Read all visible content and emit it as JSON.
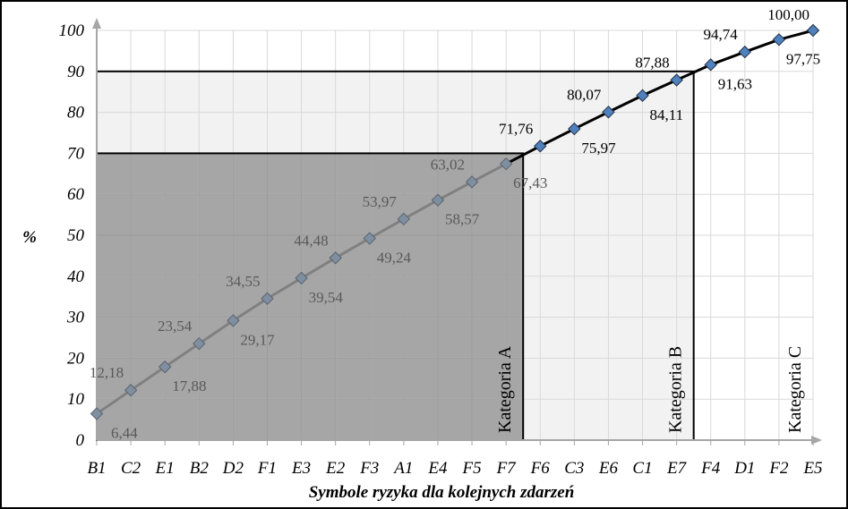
{
  "chart_data": {
    "type": "line",
    "xlabel": "Symbole ryzyka dla kolejnych zdarzeń",
    "ylabel": "%",
    "ylim": [
      0,
      100
    ],
    "yticks": [
      0,
      10,
      20,
      30,
      40,
      50,
      60,
      70,
      80,
      90,
      100
    ],
    "categories": [
      "B1",
      "C2",
      "E1",
      "B2",
      "D2",
      "F1",
      "E3",
      "E2",
      "F3",
      "A1",
      "E4",
      "F5",
      "F7",
      "F6",
      "C3",
      "E6",
      "C1",
      "E7",
      "F4",
      "D1",
      "F2",
      "E5"
    ],
    "values": [
      6.44,
      12.18,
      17.88,
      23.54,
      29.17,
      34.55,
      39.54,
      44.48,
      49.24,
      53.97,
      58.57,
      63.02,
      67.43,
      71.76,
      75.97,
      80.07,
      84.11,
      87.88,
      91.63,
      94.74,
      97.75,
      100.0
    ],
    "value_labels": [
      "6,44",
      "12,18",
      "17,88",
      "23,54",
      "29,17",
      "34,55",
      "39,54",
      "44,48",
      "49,24",
      "53,97",
      "58,57",
      "63,02",
      "67,43",
      "71,76",
      "75,97",
      "80,07",
      "84,11",
      "87,88",
      "91,63",
      "94,74",
      "97,75",
      "100,00"
    ],
    "label_positions": [
      "below",
      "above",
      "below",
      "above",
      "below",
      "above",
      "below",
      "above",
      "below",
      "above",
      "below",
      "above",
      "below",
      "above",
      "below",
      "above",
      "below",
      "above",
      "below",
      "above",
      "below",
      "above"
    ],
    "regions": [
      {
        "label": "Kategoria A",
        "y_max": 70,
        "x_end": 12.5,
        "fill": "#a6a6a6"
      },
      {
        "label": "Kategoria B",
        "y_max": 90,
        "x_end": 17.5,
        "fill": "#f2f2f2"
      },
      {
        "label": "Kategoria C",
        "y_max": 100,
        "x_end": 21,
        "fill": "#ffffff"
      }
    ],
    "grid": true,
    "colors": {
      "line_in_a": "#808080",
      "marker_in_a": "#7f8fa0",
      "line": "#000000",
      "marker": "#4f81bd",
      "label_in_a": "#595959",
      "label": "#000000",
      "grid": "#d9d9d9",
      "axis": "#a6a6a6"
    }
  }
}
